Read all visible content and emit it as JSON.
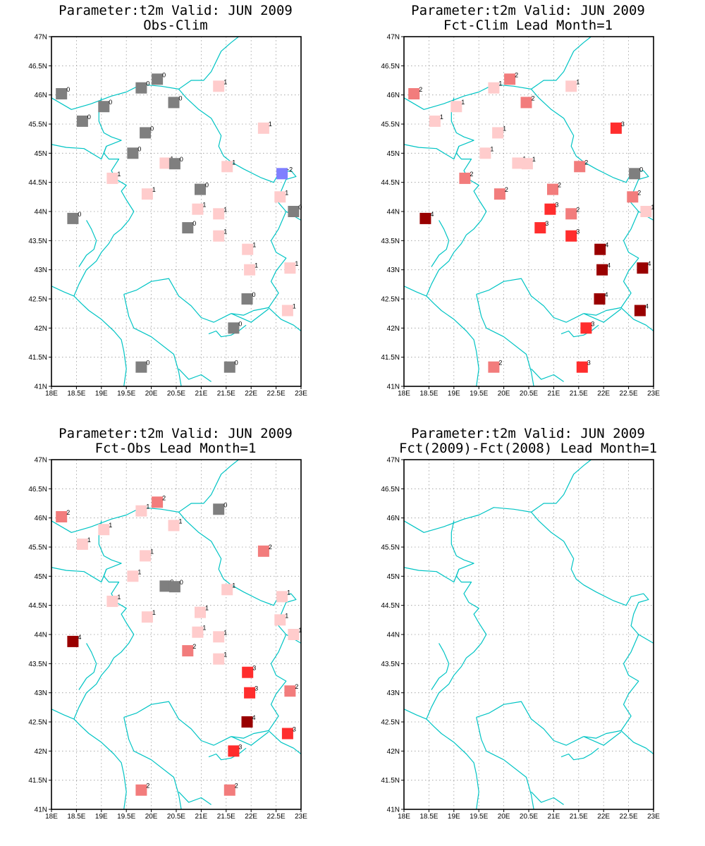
{
  "colors": {
    "-2": "#7f7fff",
    "0": "#7f7f7f",
    "1": "#ffcccc",
    "2": "#f27c7c",
    "3": "#ff2d2d",
    "4": "#990000",
    "border": "#00c4c4"
  },
  "map": {
    "lon_range": [
      18,
      23
    ],
    "lat_range": [
      41,
      47
    ],
    "lon_ticks": [
      "18E",
      "18.5E",
      "19E",
      "19.5E",
      "20E",
      "20.5E",
      "21E",
      "21.5E",
      "22E",
      "22.5E",
      "23E"
    ],
    "lat_ticks": [
      "41N",
      "41.5N",
      "42N",
      "42.5N",
      "43N",
      "43.5N",
      "44N",
      "44.5N",
      "45N",
      "45.5N",
      "46N",
      "46.5N",
      "47N"
    ]
  },
  "panels": [
    {
      "title": "Parameter:t2m Valid: JUN 2009",
      "subtitle": "Obs-Clim",
      "stations": [
        {
          "lon": 18.2,
          "lat": 46.02,
          "v": 0
        },
        {
          "lon": 18.62,
          "lat": 45.55,
          "v": 0
        },
        {
          "lon": 19.05,
          "lat": 45.8,
          "v": 0
        },
        {
          "lon": 19.8,
          "lat": 46.12,
          "v": 0
        },
        {
          "lon": 20.12,
          "lat": 46.27,
          "v": 0
        },
        {
          "lon": 20.45,
          "lat": 45.87,
          "v": 0
        },
        {
          "lon": 21.35,
          "lat": 46.15,
          "v": 1
        },
        {
          "lon": 19.88,
          "lat": 45.35,
          "v": 0
        },
        {
          "lon": 19.63,
          "lat": 45.0,
          "v": 0
        },
        {
          "lon": 20.28,
          "lat": 44.83,
          "v": 1
        },
        {
          "lon": 20.47,
          "lat": 44.82,
          "v": 0
        },
        {
          "lon": 21.52,
          "lat": 44.77,
          "v": 1
        },
        {
          "lon": 22.25,
          "lat": 45.43,
          "v": 1
        },
        {
          "lon": 22.62,
          "lat": 44.65,
          "v": -2
        },
        {
          "lon": 19.22,
          "lat": 44.57,
          "v": 1
        },
        {
          "lon": 19.92,
          "lat": 44.3,
          "v": 1
        },
        {
          "lon": 20.98,
          "lat": 44.38,
          "v": 0
        },
        {
          "lon": 22.58,
          "lat": 44.25,
          "v": 1
        },
        {
          "lon": 22.85,
          "lat": 44.0,
          "v": 0
        },
        {
          "lon": 18.43,
          "lat": 43.88,
          "v": 0
        },
        {
          "lon": 20.93,
          "lat": 44.04,
          "v": 1
        },
        {
          "lon": 21.35,
          "lat": 43.96,
          "v": 1
        },
        {
          "lon": 20.73,
          "lat": 43.72,
          "v": 0
        },
        {
          "lon": 21.35,
          "lat": 43.58,
          "v": 1
        },
        {
          "lon": 21.93,
          "lat": 43.35,
          "v": 1
        },
        {
          "lon": 21.97,
          "lat": 43.0,
          "v": 1
        },
        {
          "lon": 22.78,
          "lat": 43.03,
          "v": 1
        },
        {
          "lon": 21.92,
          "lat": 42.5,
          "v": 0
        },
        {
          "lon": 22.73,
          "lat": 42.3,
          "v": 1
        },
        {
          "lon": 21.65,
          "lat": 42.0,
          "v": 0
        },
        {
          "lon": 19.8,
          "lat": 41.33,
          "v": 0
        },
        {
          "lon": 21.57,
          "lat": 41.33,
          "v": 0
        }
      ]
    },
    {
      "title": "Parameter:t2m Valid: JUN 2009",
      "subtitle": "Fct-Clim Lead Month=1",
      "stations": [
        {
          "lon": 18.2,
          "lat": 46.02,
          "v": 2
        },
        {
          "lon": 18.62,
          "lat": 45.55,
          "v": 1
        },
        {
          "lon": 19.05,
          "lat": 45.8,
          "v": 1
        },
        {
          "lon": 19.8,
          "lat": 46.12,
          "v": 1
        },
        {
          "lon": 20.12,
          "lat": 46.27,
          "v": 2
        },
        {
          "lon": 20.45,
          "lat": 45.87,
          "v": 2
        },
        {
          "lon": 21.35,
          "lat": 46.15,
          "v": 1
        },
        {
          "lon": 19.88,
          "lat": 45.35,
          "v": 1
        },
        {
          "lon": 19.63,
          "lat": 45.0,
          "v": 1
        },
        {
          "lon": 20.28,
          "lat": 44.83,
          "v": 1
        },
        {
          "lon": 20.47,
          "lat": 44.82,
          "v": 1
        },
        {
          "lon": 21.52,
          "lat": 44.77,
          "v": 2
        },
        {
          "lon": 22.25,
          "lat": 45.43,
          "v": 3
        },
        {
          "lon": 22.62,
          "lat": 44.65,
          "v": 0
        },
        {
          "lon": 19.22,
          "lat": 44.57,
          "v": 2
        },
        {
          "lon": 19.92,
          "lat": 44.3,
          "v": 2
        },
        {
          "lon": 20.98,
          "lat": 44.38,
          "v": 2
        },
        {
          "lon": 22.58,
          "lat": 44.25,
          "v": 2
        },
        {
          "lon": 22.85,
          "lat": 44.0,
          "v": 1
        },
        {
          "lon": 18.43,
          "lat": 43.88,
          "v": 4
        },
        {
          "lon": 20.93,
          "lat": 44.04,
          "v": 3
        },
        {
          "lon": 21.35,
          "lat": 43.96,
          "v": 2
        },
        {
          "lon": 20.73,
          "lat": 43.72,
          "v": 3
        },
        {
          "lon": 21.35,
          "lat": 43.58,
          "v": 3
        },
        {
          "lon": 21.93,
          "lat": 43.35,
          "v": 4
        },
        {
          "lon": 21.97,
          "lat": 43.0,
          "v": 4
        },
        {
          "lon": 22.78,
          "lat": 43.03,
          "v": 4
        },
        {
          "lon": 21.92,
          "lat": 42.5,
          "v": 4
        },
        {
          "lon": 22.73,
          "lat": 42.3,
          "v": 4
        },
        {
          "lon": 21.65,
          "lat": 42.0,
          "v": 3
        },
        {
          "lon": 19.8,
          "lat": 41.33,
          "v": 2
        },
        {
          "lon": 21.57,
          "lat": 41.33,
          "v": 3
        }
      ]
    },
    {
      "title": "Parameter:t2m Valid: JUN 2009",
      "subtitle": "Fct-Obs Lead Month=1",
      "stations": [
        {
          "lon": 18.2,
          "lat": 46.02,
          "v": 2
        },
        {
          "lon": 18.62,
          "lat": 45.55,
          "v": 1
        },
        {
          "lon": 19.05,
          "lat": 45.8,
          "v": 1
        },
        {
          "lon": 19.8,
          "lat": 46.12,
          "v": 1
        },
        {
          "lon": 20.12,
          "lat": 46.27,
          "v": 2
        },
        {
          "lon": 20.45,
          "lat": 45.87,
          "v": 1
        },
        {
          "lon": 21.35,
          "lat": 46.15,
          "v": 0
        },
        {
          "lon": 19.88,
          "lat": 45.35,
          "v": 1
        },
        {
          "lon": 19.63,
          "lat": 45.0,
          "v": 1
        },
        {
          "lon": 20.28,
          "lat": 44.83,
          "v": 0
        },
        {
          "lon": 20.47,
          "lat": 44.82,
          "v": 0
        },
        {
          "lon": 21.52,
          "lat": 44.77,
          "v": 1
        },
        {
          "lon": 22.25,
          "lat": 45.43,
          "v": 2
        },
        {
          "lon": 22.62,
          "lat": 44.65,
          "v": 1
        },
        {
          "lon": 19.22,
          "lat": 44.57,
          "v": 1
        },
        {
          "lon": 19.92,
          "lat": 44.3,
          "v": 1
        },
        {
          "lon": 20.98,
          "lat": 44.38,
          "v": 1
        },
        {
          "lon": 22.58,
          "lat": 44.25,
          "v": 1
        },
        {
          "lon": 22.85,
          "lat": 44.0,
          "v": 1
        },
        {
          "lon": 18.43,
          "lat": 43.88,
          "v": 4
        },
        {
          "lon": 20.93,
          "lat": 44.04,
          "v": 1
        },
        {
          "lon": 21.35,
          "lat": 43.96,
          "v": 1
        },
        {
          "lon": 20.73,
          "lat": 43.72,
          "v": 2
        },
        {
          "lon": 21.35,
          "lat": 43.58,
          "v": 1
        },
        {
          "lon": 21.93,
          "lat": 43.35,
          "v": 3
        },
        {
          "lon": 21.97,
          "lat": 43.0,
          "v": 3
        },
        {
          "lon": 22.78,
          "lat": 43.03,
          "v": 2
        },
        {
          "lon": 21.92,
          "lat": 42.5,
          "v": 4
        },
        {
          "lon": 22.73,
          "lat": 42.3,
          "v": 3
        },
        {
          "lon": 21.65,
          "lat": 42.0,
          "v": 3
        },
        {
          "lon": 19.8,
          "lat": 41.33,
          "v": 2
        },
        {
          "lon": 21.57,
          "lat": 41.33,
          "v": 2
        }
      ]
    },
    {
      "title": "Parameter:t2m Valid: JUN 2009",
      "subtitle": "Fct(2009)-Fct(2008) Lead Month=1",
      "stations": []
    }
  ]
}
